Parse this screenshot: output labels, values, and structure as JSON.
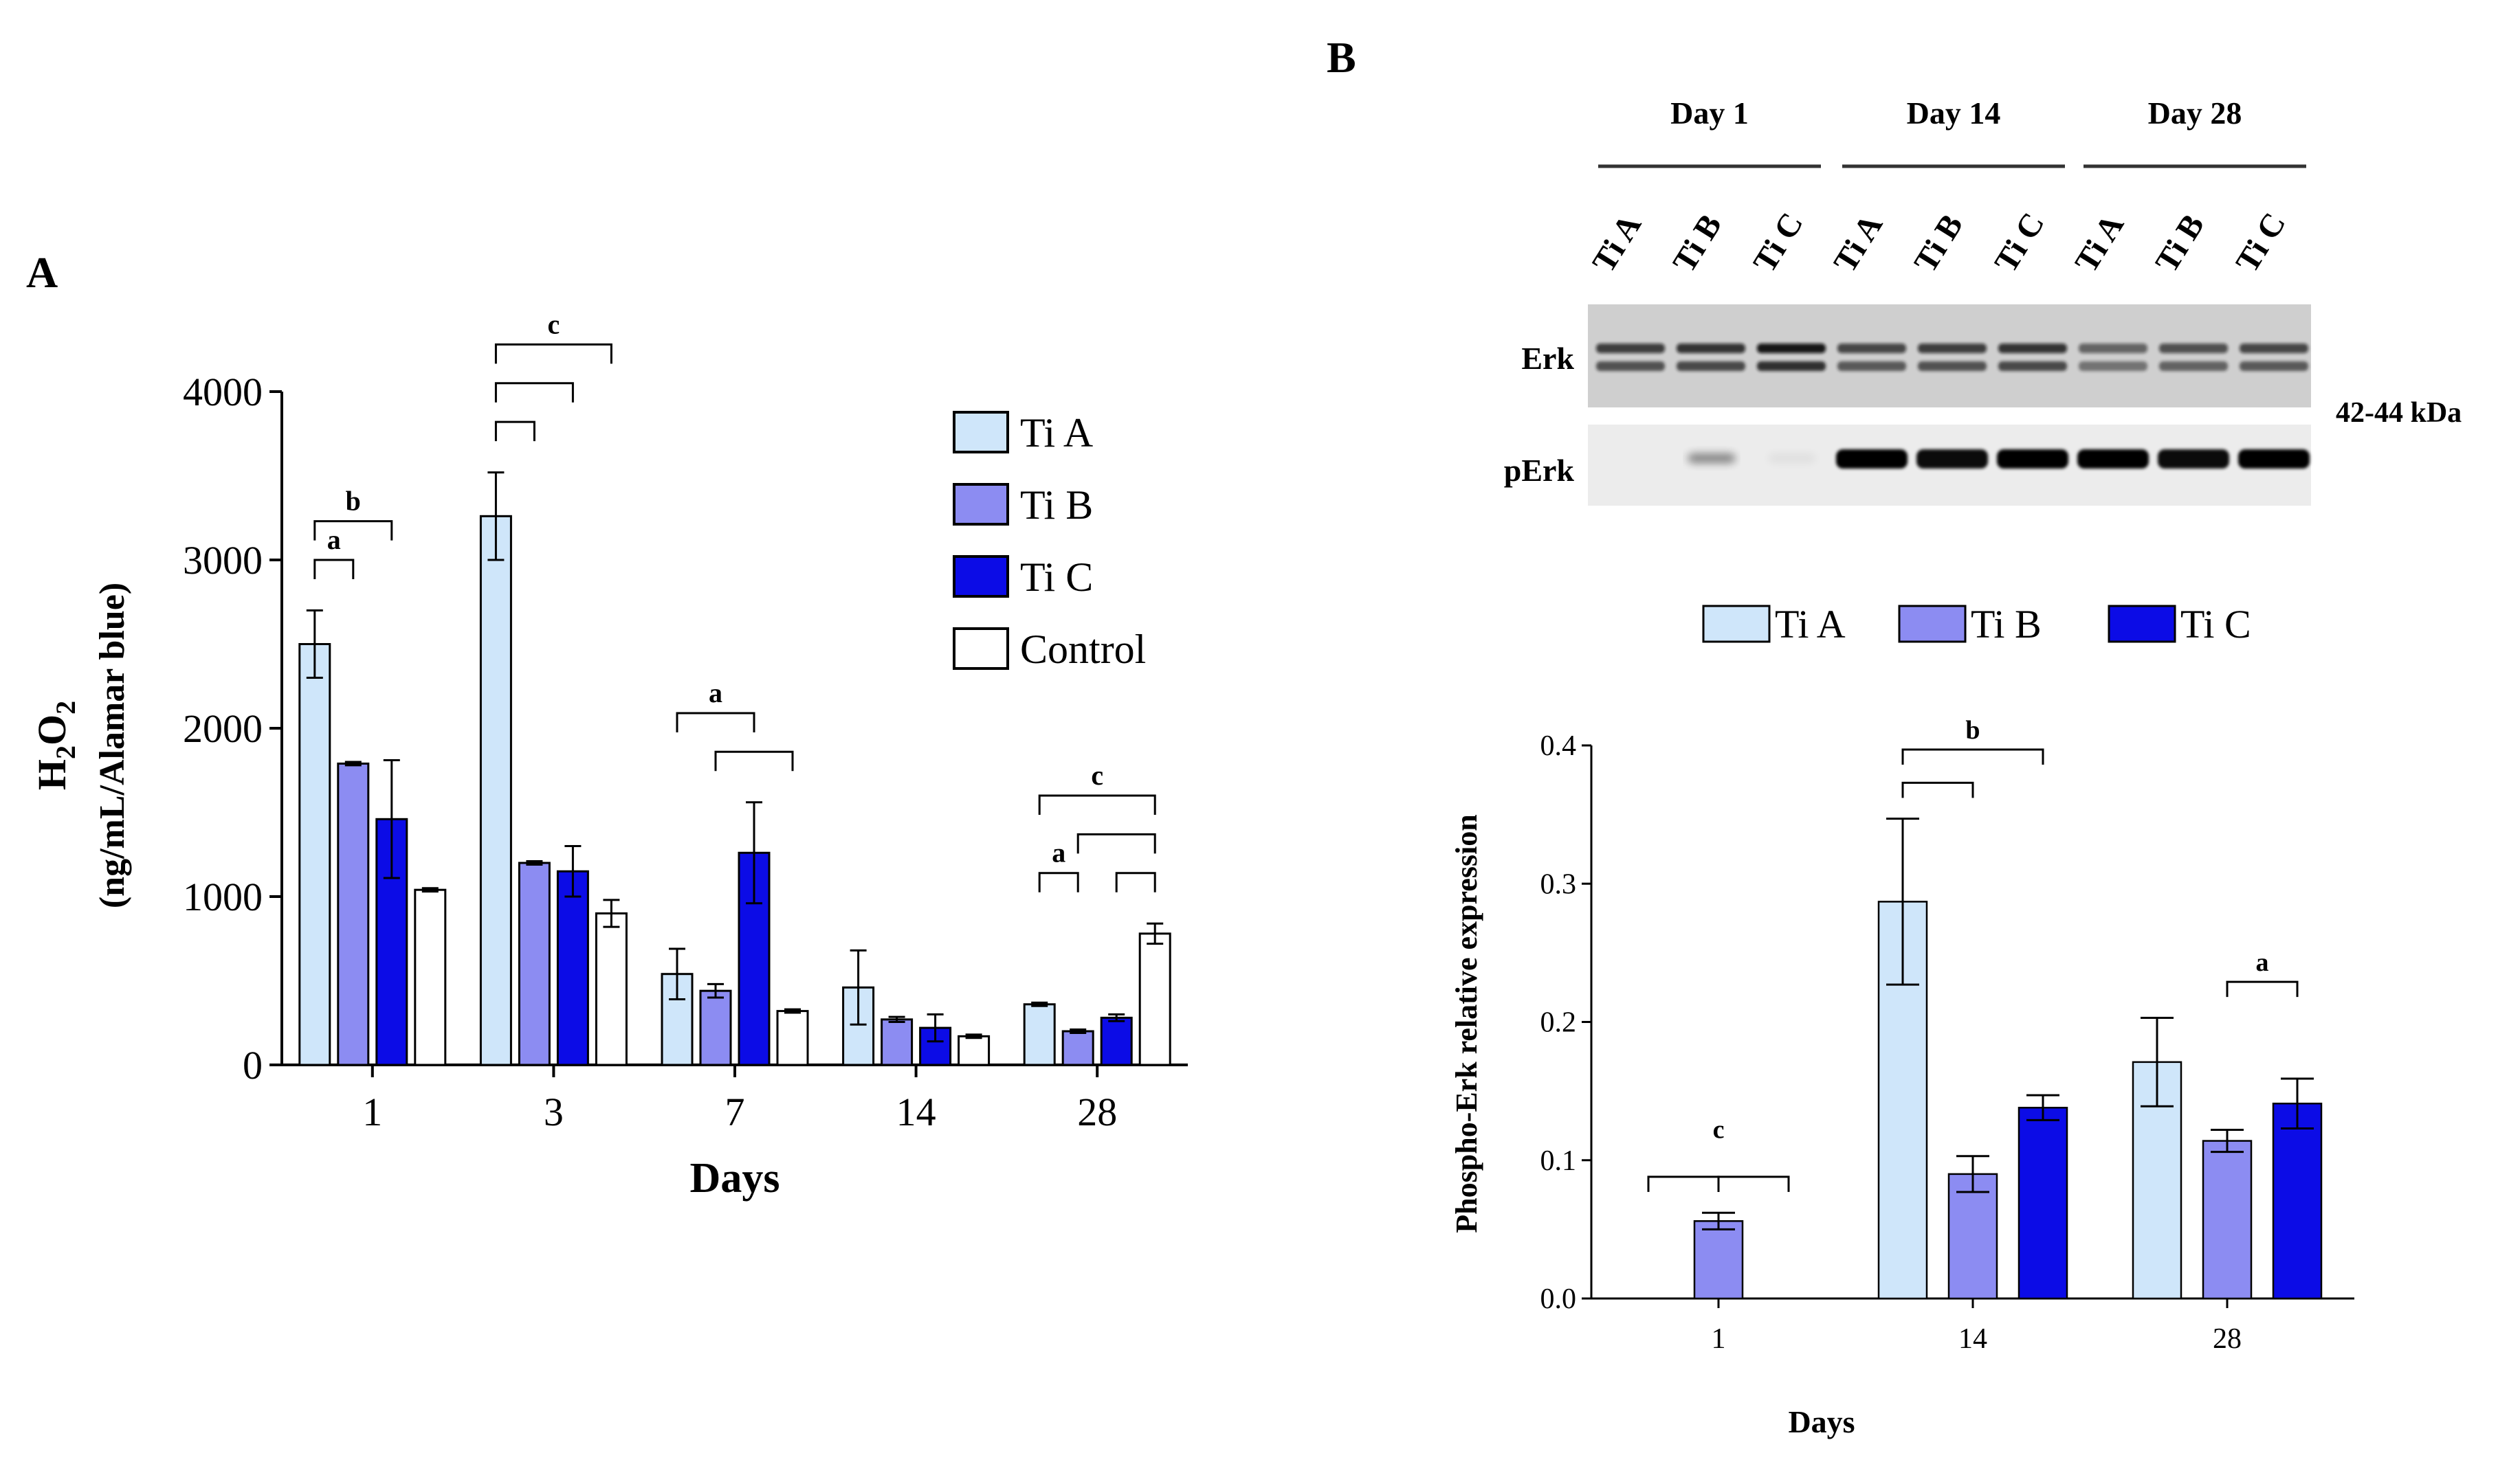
{
  "chart_data": [
    {
      "type": "bar",
      "panel": "A",
      "categories": [
        "1",
        "3",
        "7",
        "14",
        "28"
      ],
      "series": [
        {
          "name": "Ti A",
          "color": "#cfe6fa",
          "values": [
            2500,
            3260,
            540,
            460,
            360
          ],
          "errors": [
            200,
            260,
            150,
            220,
            10
          ]
        },
        {
          "name": "Ti B",
          "color": "#8c8cf2",
          "values": [
            1790,
            1200,
            440,
            270,
            200
          ],
          "errors": [
            10,
            10,
            40,
            15,
            10
          ]
        },
        {
          "name": "Ti C",
          "color": "#0c0ce6",
          "values": [
            1460,
            1150,
            1260,
            220,
            280
          ],
          "errors": [
            350,
            150,
            300,
            80,
            20
          ]
        },
        {
          "name": "Control",
          "color": "#ffffff",
          "values": [
            1040,
            900,
            320,
            170,
            780
          ],
          "errors": [
            10,
            80,
            10,
            10,
            60
          ]
        }
      ],
      "xlabel": "Days",
      "ylabel_top": "H2O2",
      "ylabel_bottom": "(ng/mL/Alamar blue)",
      "ylim": [
        0,
        4000
      ],
      "yticks": [
        0,
        1000,
        2000,
        3000,
        4000
      ],
      "annotations": [
        {
          "day": "1",
          "from": "Ti A",
          "to": "Ti B",
          "label": "a",
          "level": 1
        },
        {
          "day": "1",
          "from": "Ti A",
          "to": "Ti C",
          "label": "b",
          "level": 2
        },
        {
          "day": "3",
          "from": "Ti A",
          "to": "Ti B",
          "label": "",
          "level": 1
        },
        {
          "day": "3",
          "from": "Ti A",
          "to": "Ti C",
          "label": "",
          "level": 2
        },
        {
          "day": "3",
          "from": "Ti A",
          "to": "Control",
          "label": "c",
          "level": 3
        },
        {
          "day": "7",
          "from": "Ti A",
          "to": "Ti C",
          "label": "a",
          "level": 2
        },
        {
          "day": "7",
          "from": "Ti B",
          "to": "Control",
          "label": "",
          "level": 1
        },
        {
          "day": "28",
          "from": "Ti A",
          "to": "Ti B",
          "label": "a",
          "level": 1
        },
        {
          "day": "28",
          "from": "Ti C",
          "to": "Control",
          "label": "",
          "level": 1
        },
        {
          "day": "28",
          "from": "Ti B",
          "to": "Control",
          "label": "",
          "level": 2
        },
        {
          "day": "28",
          "from": "Ti A",
          "to": "Control",
          "label": "c",
          "level": 3
        }
      ]
    },
    {
      "type": "bar",
      "panel": "B",
      "categories": [
        "1",
        "14",
        "28"
      ],
      "series": [
        {
          "name": "Ti A",
          "color": "#cfe6fa",
          "values": [
            0,
            0.287,
            0.171
          ],
          "errors": [
            0,
            0.06,
            0.032
          ]
        },
        {
          "name": "Ti B",
          "color": "#8c8cf2",
          "values": [
            0.056,
            0.09,
            0.114
          ],
          "errors": [
            0.006,
            0.013,
            0.008
          ]
        },
        {
          "name": "Ti C",
          "color": "#0c0ce6",
          "values": [
            0,
            0.138,
            0.141
          ],
          "errors": [
            0,
            0.009,
            0.018
          ]
        }
      ],
      "xlabel": "Days",
      "ylabel": "Phospho-Erk relative expression",
      "ylim": [
        0,
        0.4
      ],
      "yticks": [
        "0.0",
        "0.1",
        "0.2",
        "0.3",
        "0.4"
      ],
      "annotations": [
        {
          "day": "1",
          "from": "Ti A",
          "to": "Ti B",
          "label": "",
          "level": 1
        },
        {
          "day": "1",
          "from": "Ti B",
          "to": "Ti C",
          "label": "",
          "level": 1
        },
        {
          "day": "1",
          "label_between": "c"
        },
        {
          "day": "14",
          "from": "Ti A",
          "to": "Ti B",
          "label": "",
          "level": 1
        },
        {
          "day": "14",
          "from": "Ti A",
          "to": "Ti C",
          "label": "b",
          "level": 2
        },
        {
          "day": "28",
          "from": "Ti B",
          "to": "Ti C",
          "label": "a",
          "level": 1
        }
      ]
    }
  ],
  "panel_a_label": "A",
  "panel_b_label": "B",
  "blot": {
    "groups": [
      "Day 1",
      "Day 14",
      "Day 28"
    ],
    "lanes": [
      "Ti A",
      "Ti B",
      "Ti C",
      "Ti A",
      "Ti B",
      "Ti C",
      "Ti A",
      "Ti B",
      "Ti C"
    ],
    "rows": [
      "Erk",
      "pErk"
    ],
    "size_label": "42-44 kDa"
  }
}
